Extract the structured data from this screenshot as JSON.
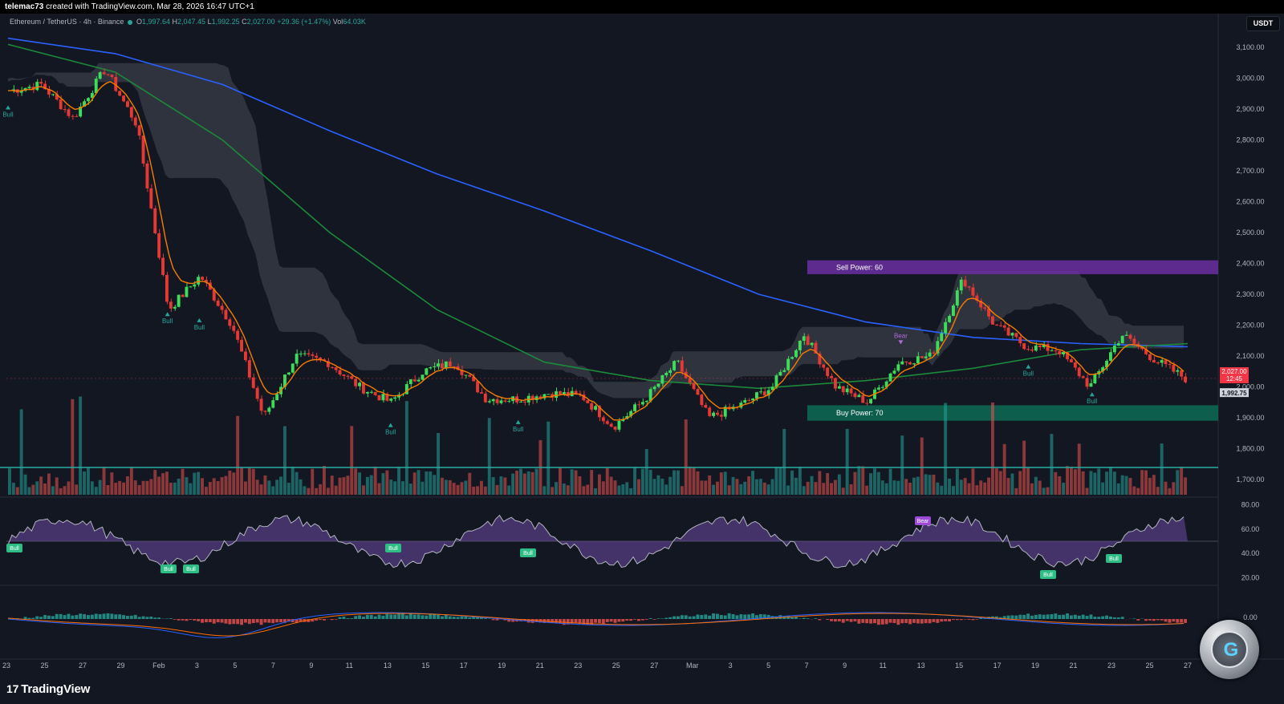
{
  "header": {
    "author": "telemac73",
    "text": "created with TradingView.com, Mar 28, 2026 16:47 UTC+1"
  },
  "legend": {
    "symbol": "Ethereum / TetherUS · 4h · Binance",
    "open_label": "O",
    "open": "1,997.64",
    "high_label": "H",
    "high": "2,047.45",
    "low_label": "L",
    "low": "1,992.25",
    "close_label": "C",
    "close": "2,027.00",
    "change": "+29.36 (+1.47%)",
    "vol_label": "Vol",
    "vol": "64.03",
    "vol_unit": "K"
  },
  "currency_button": "USDT",
  "brand": {
    "name": "TradingView",
    "mark": "17"
  },
  "colors": {
    "background": "#131722",
    "bull": "#26a69a",
    "bear": "#ef5350",
    "ma_blue": "#2962ff",
    "ma_green": "#1b8a3a",
    "ma_orange": "#f57c00",
    "sell_zone": "#6a2fa0",
    "buy_zone": "#0d6b55"
  },
  "chart_data": {
    "type": "candlestick",
    "symbol": "Ethereum / TetherUS",
    "interval": "4h",
    "exchange": "Binance",
    "y_ticks": [
      "3,100.00",
      "3,000.00",
      "2,900.00",
      "2,800.00",
      "2,700.00",
      "2,600.00",
      "2,500.00",
      "2,400.00",
      "2,300.00",
      "2,200.00",
      "2,100.00",
      "2,000.00",
      "1,900.00",
      "1,800.00",
      "1,700.00"
    ],
    "y_range": [
      1650,
      3150
    ],
    "x_ticks": [
      "23",
      "25",
      "27",
      "29",
      "Feb",
      "3",
      "5",
      "7",
      "9",
      "11",
      "13",
      "15",
      "17",
      "19",
      "21",
      "23",
      "25",
      "27",
      "Mar",
      "3",
      "5",
      "7",
      "9",
      "11",
      "13",
      "15",
      "17",
      "19",
      "21",
      "23",
      "25",
      "27"
    ],
    "price_labels": {
      "last": "2,027.00",
      "countdown": "12:45",
      "low": "1,992.75"
    },
    "zones": [
      {
        "label": "Sell Power: 60",
        "from": 2365,
        "to": 2410
      },
      {
        "label": "Buy Power: 70",
        "from": 1890,
        "to": 1940
      }
    ],
    "signals": [
      {
        "label": "Bull",
        "x_index": 0,
        "price": 2920
      },
      {
        "label": "Bull",
        "x_index": 5,
        "price": 2250
      },
      {
        "label": "Bull",
        "x_index": 6,
        "price": 2230
      },
      {
        "label": "Bull",
        "x_index": 12,
        "price": 1890
      },
      {
        "label": "Bull",
        "x_index": 16,
        "price": 1900
      },
      {
        "label": "Bear",
        "x_index": 28,
        "price": 2130
      },
      {
        "label": "Bull",
        "x_index": 32,
        "price": 2080
      },
      {
        "label": "Bull",
        "x_index": 34,
        "price": 1990
      }
    ],
    "key_prices": [
      [
        0,
        2960
      ],
      [
        1,
        2980
      ],
      [
        2,
        2870
      ],
      [
        3,
        3030
      ],
      [
        4,
        2850
      ],
      [
        5,
        2250
      ],
      [
        6,
        2360
      ],
      [
        7,
        2200
      ],
      [
        8,
        1900
      ],
      [
        9,
        2100
      ],
      [
        10,
        2080
      ],
      [
        11,
        2000
      ],
      [
        12,
        1950
      ],
      [
        13,
        2050
      ],
      [
        14,
        2080
      ],
      [
        15,
        1960
      ],
      [
        16,
        1960
      ],
      [
        17,
        1980
      ],
      [
        18,
        1970
      ],
      [
        19,
        1870
      ],
      [
        20,
        1960
      ],
      [
        21,
        2080
      ],
      [
        22,
        1900
      ],
      [
        23,
        1940
      ],
      [
        24,
        2000
      ],
      [
        25,
        2170
      ],
      [
        26,
        2000
      ],
      [
        27,
        1950
      ],
      [
        28,
        2080
      ],
      [
        29,
        2100
      ],
      [
        30,
        2350
      ],
      [
        31,
        2200
      ],
      [
        32,
        2130
      ],
      [
        33,
        2120
      ],
      [
        34,
        2000
      ],
      [
        35,
        2170
      ],
      [
        36,
        2090
      ],
      [
        37,
        2027
      ]
    ],
    "moving_averages": [
      {
        "name": "MA long",
        "color": "#2962ff",
        "values": [
          3130,
          3080,
          2980,
          2830,
          2690,
          2570,
          2440,
          2300,
          2210,
          2160,
          2140,
          2130
        ]
      },
      {
        "name": "MA medium",
        "color": "#1b8a3a",
        "values": [
          3110,
          3020,
          2800,
          2500,
          2250,
          2080,
          2020,
          1995,
          2020,
          2060,
          2120,
          2140
        ]
      }
    ],
    "rsi": {
      "y_ticks": [
        "80.00",
        "60.00",
        "40.00",
        "20.00"
      ],
      "signals": [
        "Bull",
        "Bull",
        "Bull",
        "Bull",
        "Bull",
        "Bear",
        "Bull",
        "Bull"
      ]
    },
    "macd": {
      "y_ticks": [
        "0.00"
      ]
    }
  }
}
